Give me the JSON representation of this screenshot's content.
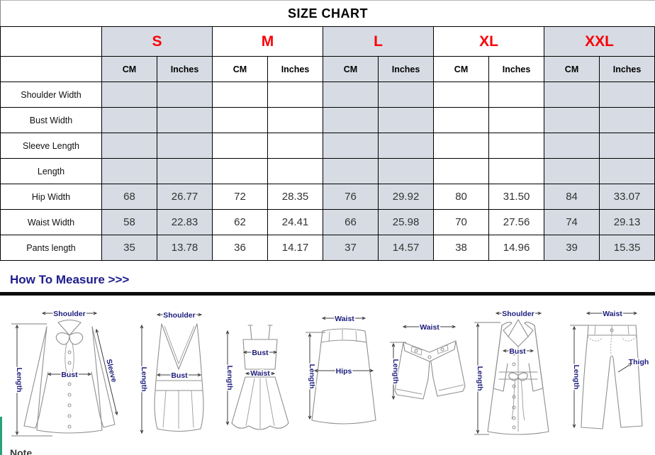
{
  "title": "SIZE CHART",
  "table": {
    "sizes": [
      "S",
      "M",
      "L",
      "XL",
      "XXL"
    ],
    "unit_headers": [
      "CM",
      "Inches"
    ],
    "rows": [
      {
        "label": "Shoulder Width",
        "values": [
          "",
          "",
          "",
          "",
          "",
          "",
          "",
          "",
          "",
          ""
        ]
      },
      {
        "label": "Bust Width",
        "values": [
          "",
          "",
          "",
          "",
          "",
          "",
          "",
          "",
          "",
          ""
        ]
      },
      {
        "label": "Sleeve Length",
        "values": [
          "",
          "",
          "",
          "",
          "",
          "",
          "",
          "",
          "",
          ""
        ]
      },
      {
        "label": "Length",
        "values": [
          "",
          "",
          "",
          "",
          "",
          "",
          "",
          "",
          "",
          ""
        ]
      },
      {
        "label": "Hip Width",
        "values": [
          "68",
          "26.77",
          "72",
          "28.35",
          "76",
          "29.92",
          "80",
          "31.50",
          "84",
          "33.07"
        ]
      },
      {
        "label": "Waist Width",
        "values": [
          "58",
          "22.83",
          "62",
          "24.41",
          "66",
          "25.98",
          "70",
          "27.56",
          "74",
          "29.13"
        ]
      },
      {
        "label": "Pants length",
        "values": [
          "35",
          "13.78",
          "36",
          "14.17",
          "37",
          "14.57",
          "38",
          "14.96",
          "39",
          "15.35"
        ]
      }
    ]
  },
  "measure": {
    "heading": "How To Measure >>>",
    "garments": [
      {
        "name": "blouse",
        "labels": {
          "shoulder": "Shoulder",
          "length": "Length",
          "bust": "Bust",
          "sleeve": "Sleeve"
        }
      },
      {
        "name": "tank-top",
        "labels": {
          "shoulder": "Shoulder",
          "length": "Length",
          "bust": "Bust"
        }
      },
      {
        "name": "slip-dress",
        "labels": {
          "length": "Length",
          "bust": "Bust",
          "waist": "Waist"
        }
      },
      {
        "name": "skirt",
        "labels": {
          "waist": "Waist",
          "length": "Length",
          "hips": "Hips"
        }
      },
      {
        "name": "shorts",
        "labels": {
          "waist": "Waist",
          "length": "Length"
        }
      },
      {
        "name": "coat",
        "labels": {
          "shoulder": "Shoulder",
          "length": "Length",
          "bust": "Bust"
        }
      },
      {
        "name": "pants",
        "labels": {
          "waist": "Waist",
          "length": "Length",
          "thigh": "Thigh"
        }
      }
    ]
  },
  "note_label": "Note",
  "colors": {
    "size_header_red": "#fb0007",
    "shaded_cell": "#d7dce4",
    "measure_heading_navy": "#1b1b8c",
    "drawing_label_navy": "#1c1c7d",
    "left_stripe_teal": "#2aa17c"
  }
}
